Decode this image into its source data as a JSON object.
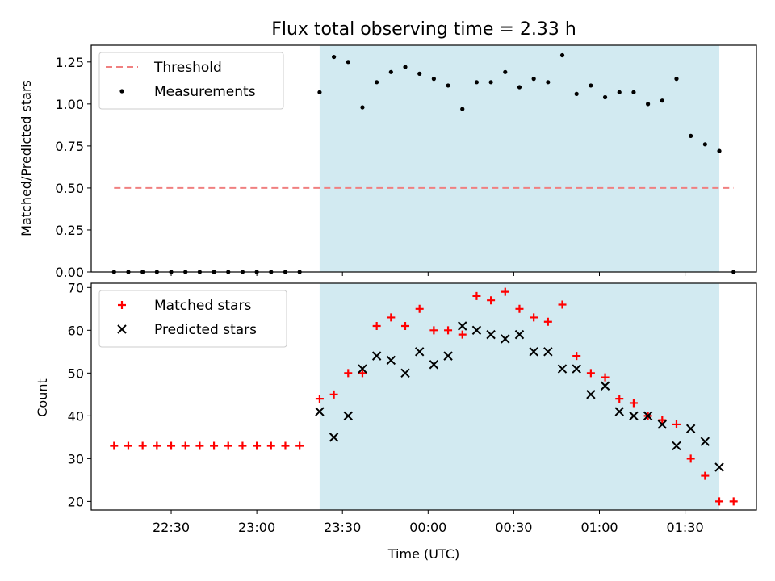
{
  "chart_data": [
    {
      "type": "scatter",
      "title": "Flux total observing time = 2.33 h",
      "xlabel": "",
      "ylabel": "Matched/Predicted stars",
      "ylim": [
        0,
        1.35
      ],
      "yticks": [
        "0.00",
        "0.25",
        "0.50",
        "0.75",
        "1.00",
        "1.25"
      ],
      "shaded_span": {
        "start": "23:22",
        "end": "01:42",
        "color": "#add8e6"
      },
      "legend": {
        "placement": "top-left",
        "entries": [
          "Threshold",
          "Measurements"
        ]
      },
      "series": [
        {
          "name": "Threshold",
          "style": "dashed-line",
          "color": "#f08080",
          "points": [
            [
              "22:10",
              0.5
            ],
            [
              "01:47",
              0.5
            ]
          ]
        },
        {
          "name": "Measurements",
          "style": "dot",
          "color": "#000000",
          "points": [
            [
              "22:10",
              0.0
            ],
            [
              "22:15",
              0.0
            ],
            [
              "22:20",
              0.0
            ],
            [
              "22:25",
              0.0
            ],
            [
              "22:30",
              0.0
            ],
            [
              "22:35",
              0.0
            ],
            [
              "22:40",
              0.0
            ],
            [
              "22:45",
              0.0
            ],
            [
              "22:50",
              0.0
            ],
            [
              "22:55",
              0.0
            ],
            [
              "23:00",
              0.0
            ],
            [
              "23:05",
              0.0
            ],
            [
              "23:10",
              0.0
            ],
            [
              "23:15",
              0.0
            ],
            [
              "23:22",
              1.07
            ],
            [
              "23:27",
              1.28
            ],
            [
              "23:32",
              1.25
            ],
            [
              "23:37",
              0.98
            ],
            [
              "23:42",
              1.13
            ],
            [
              "23:47",
              1.19
            ],
            [
              "23:52",
              1.22
            ],
            [
              "23:57",
              1.18
            ],
            [
              "00:02",
              1.15
            ],
            [
              "00:07",
              1.11
            ],
            [
              "00:12",
              0.97
            ],
            [
              "00:17",
              1.13
            ],
            [
              "00:22",
              1.13
            ],
            [
              "00:27",
              1.19
            ],
            [
              "00:32",
              1.1
            ],
            [
              "00:37",
              1.15
            ],
            [
              "00:42",
              1.13
            ],
            [
              "00:47",
              1.29
            ],
            [
              "00:52",
              1.06
            ],
            [
              "00:57",
              1.11
            ],
            [
              "01:02",
              1.04
            ],
            [
              "01:07",
              1.07
            ],
            [
              "01:12",
              1.07
            ],
            [
              "01:17",
              1.0
            ],
            [
              "01:22",
              1.02
            ],
            [
              "01:27",
              1.15
            ],
            [
              "01:32",
              0.81
            ],
            [
              "01:37",
              0.76
            ],
            [
              "01:42",
              0.72
            ],
            [
              "01:47",
              0.0
            ]
          ]
        }
      ]
    },
    {
      "type": "scatter",
      "title": "",
      "xlabel": "Time (UTC)",
      "ylabel": "Count",
      "ylim": [
        18,
        71
      ],
      "yticks": [
        "20",
        "30",
        "40",
        "50",
        "60",
        "70"
      ],
      "xticks": [
        "22:30",
        "23:00",
        "23:30",
        "00:00",
        "00:30",
        "01:00",
        "01:30"
      ],
      "shaded_span": {
        "start": "23:22",
        "end": "01:42",
        "color": "#add8e6"
      },
      "legend": {
        "placement": "top-left",
        "entries": [
          "Matched stars",
          "Predicted stars"
        ]
      },
      "series": [
        {
          "name": "Matched stars",
          "style": "plus",
          "color": "#ff0000",
          "points": [
            [
              "22:10",
              33
            ],
            [
              "22:15",
              33
            ],
            [
              "22:20",
              33
            ],
            [
              "22:25",
              33
            ],
            [
              "22:30",
              33
            ],
            [
              "22:35",
              33
            ],
            [
              "22:40",
              33
            ],
            [
              "22:45",
              33
            ],
            [
              "22:50",
              33
            ],
            [
              "22:55",
              33
            ],
            [
              "23:00",
              33
            ],
            [
              "23:05",
              33
            ],
            [
              "23:10",
              33
            ],
            [
              "23:15",
              33
            ],
            [
              "23:22",
              44
            ],
            [
              "23:27",
              45
            ],
            [
              "23:32",
              50
            ],
            [
              "23:37",
              50
            ],
            [
              "23:42",
              61
            ],
            [
              "23:47",
              63
            ],
            [
              "23:52",
              61
            ],
            [
              "23:57",
              65
            ],
            [
              "00:02",
              60
            ],
            [
              "00:07",
              60
            ],
            [
              "00:12",
              59
            ],
            [
              "00:17",
              68
            ],
            [
              "00:22",
              67
            ],
            [
              "00:27",
              69
            ],
            [
              "00:32",
              65
            ],
            [
              "00:37",
              63
            ],
            [
              "00:42",
              62
            ],
            [
              "00:47",
              66
            ],
            [
              "00:52",
              54
            ],
            [
              "00:57",
              50
            ],
            [
              "01:02",
              49
            ],
            [
              "01:07",
              44
            ],
            [
              "01:12",
              43
            ],
            [
              "01:17",
              40
            ],
            [
              "01:22",
              39
            ],
            [
              "01:27",
              38
            ],
            [
              "01:32",
              30
            ],
            [
              "01:37",
              26
            ],
            [
              "01:42",
              20
            ],
            [
              "01:47",
              20
            ]
          ]
        },
        {
          "name": "Predicted stars",
          "style": "x",
          "color": "#000000",
          "points": [
            [
              "23:22",
              41
            ],
            [
              "23:27",
              35
            ],
            [
              "23:32",
              40
            ],
            [
              "23:37",
              51
            ],
            [
              "23:42",
              54
            ],
            [
              "23:47",
              53
            ],
            [
              "23:52",
              50
            ],
            [
              "23:57",
              55
            ],
            [
              "00:02",
              52
            ],
            [
              "00:07",
              54
            ],
            [
              "00:12",
              61
            ],
            [
              "00:17",
              60
            ],
            [
              "00:22",
              59
            ],
            [
              "00:27",
              58
            ],
            [
              "00:32",
              59
            ],
            [
              "00:37",
              55
            ],
            [
              "00:42",
              55
            ],
            [
              "00:47",
              51
            ],
            [
              "00:52",
              51
            ],
            [
              "00:57",
              45
            ],
            [
              "01:02",
              47
            ],
            [
              "01:07",
              41
            ],
            [
              "01:12",
              40
            ],
            [
              "01:17",
              40
            ],
            [
              "01:22",
              38
            ],
            [
              "01:27",
              33
            ],
            [
              "01:32",
              37
            ],
            [
              "01:37",
              34
            ],
            [
              "01:42",
              28
            ]
          ]
        }
      ]
    }
  ]
}
